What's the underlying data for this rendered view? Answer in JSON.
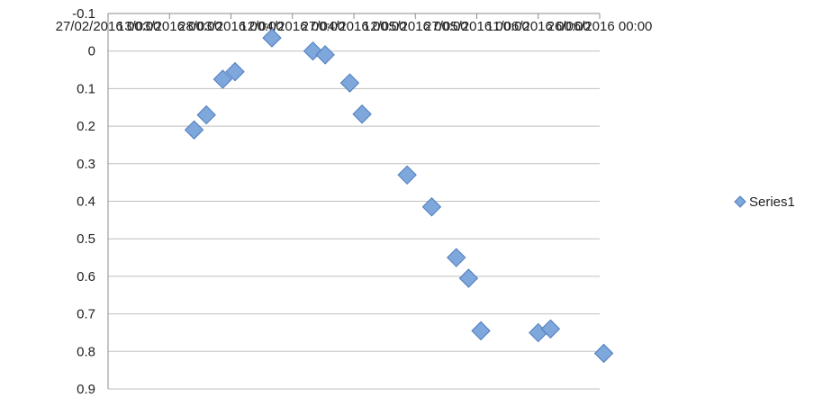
{
  "colors": {
    "marker_fill": "#7ea7db",
    "marker_stroke": "#4f7cbf",
    "gridline": "#bfbfbf",
    "axis": "#8c8c8c",
    "text": "#222222"
  },
  "chart_data": {
    "type": "scatter",
    "marker": "diamond",
    "y_axis_reversed": true,
    "ylim": [
      -0.1,
      0.9
    ],
    "yticks": [
      -0.1,
      0,
      0.1,
      0.2,
      0.3,
      0.4,
      0.5,
      0.6,
      0.7,
      0.8,
      0.9
    ],
    "ytick_labels": [
      "-0.1",
      "0",
      "0.1",
      "0.2",
      "0.3",
      "0.4",
      "0.5",
      "0.6",
      "0.7",
      "0.8",
      "0.9"
    ],
    "xlim_index": [
      0,
      8
    ],
    "xtick_labels": [
      "27/02/2016 00:00",
      "13/03/2016 00:00",
      "28/03/2016 00:00",
      "12/04/2016 00:00",
      "27/04/2016 00:00",
      "12/05/2016 00:00",
      "27/05/2016 00:00",
      "11/06/2016 00:00",
      "26/06/2016 00:00"
    ],
    "x_axis_position": "top",
    "grid": "horizontal",
    "legend": {
      "position": "right",
      "entries": [
        "Series1"
      ]
    },
    "series": [
      {
        "name": "Series1",
        "x": [
          "19/03/2016",
          "22/03/2016",
          "26/03/2016",
          "29/03/2016",
          "07/04/2016",
          "17/04/2016",
          "20/04/2016",
          "26/04/2016",
          "29/04/2016",
          "10/05/2016",
          "16/05/2016",
          "22/05/2016",
          "25/05/2016",
          "28/05/2016",
          "11/06/2016",
          "14/06/2016",
          "27/06/2016"
        ],
        "y": [
          0.21,
          0.17,
          0.075,
          0.055,
          -0.035,
          0.0,
          0.01,
          0.085,
          0.168,
          0.33,
          0.415,
          0.55,
          0.605,
          0.745,
          0.75,
          0.74,
          0.805
        ]
      }
    ]
  }
}
